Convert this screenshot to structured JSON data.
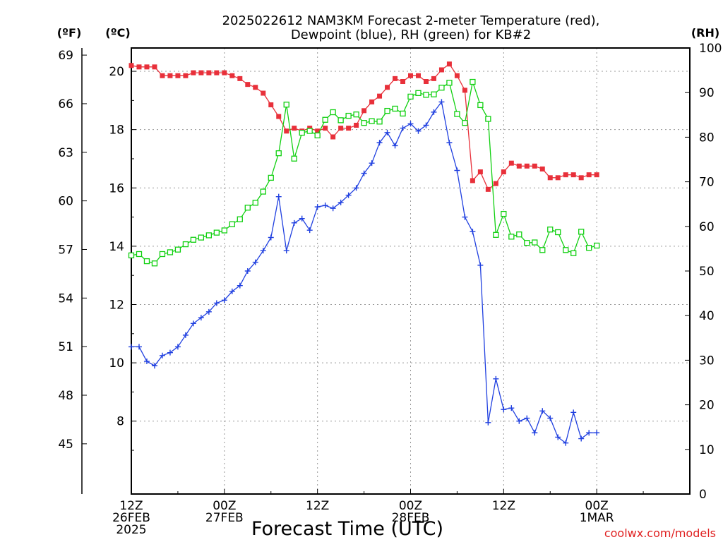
{
  "chart_data": {
    "type": "line",
    "title_lines": [
      "2025022612 NAM3KM Forecast 2-meter Temperature (red),",
      "Dewpoint (blue), RH (green) for KB#2"
    ],
    "xlabel": "Forecast Time (UTC)",
    "credit": "coolwx.com/models",
    "unit_labels": {
      "fahrenheit": "(ºF)",
      "celsius": "(ºC)",
      "rh": "(RH)"
    },
    "x_range_hours": [
      0,
      36
    ],
    "x_ticks": [
      {
        "hour": 0,
        "lines": [
          "12Z",
          "26FEB",
          "2025"
        ]
      },
      {
        "hour": 6,
        "lines": [
          "00Z",
          "27FEB"
        ]
      },
      {
        "hour": 12,
        "lines": [
          "12Z"
        ]
      },
      {
        "hour": 18,
        "lines": [
          "00Z",
          "28FEB"
        ]
      },
      {
        "hour": 24,
        "lines": [
          "12Z"
        ]
      },
      {
        "hour": 30,
        "lines": [
          "00Z",
          "1MAR"
        ]
      }
    ],
    "celsius_axis": {
      "range": [
        5.5,
        20.8
      ],
      "ticks": [
        8,
        10,
        12,
        14,
        16,
        18,
        20
      ]
    },
    "fahrenheit_axis": {
      "ticks": [
        45,
        48,
        51,
        54,
        57,
        60,
        63,
        66,
        69
      ]
    },
    "rh_axis": {
      "range": [
        0,
        100
      ],
      "ticks": [
        0,
        10,
        20,
        30,
        40,
        50,
        60,
        70,
        80,
        90,
        100
      ]
    },
    "grid": true,
    "colors": {
      "temperature": "#e8303a",
      "dewpoint": "#2040e0",
      "rh": "#10d010"
    },
    "series": [
      {
        "name": "Temperature",
        "unit": "celsius",
        "marker": "filled-square",
        "x": [
          0,
          0.5,
          1,
          1.5,
          2,
          2.5,
          3,
          3.5,
          4,
          4.5,
          5,
          5.5,
          6,
          6.5,
          7,
          7.5,
          8,
          8.5,
          9,
          9.5,
          10,
          10.5,
          11,
          11.5,
          12,
          12.5,
          13,
          13.5,
          14,
          14.5,
          15,
          15.5,
          16,
          16.5,
          17,
          17.5,
          18,
          18.5,
          19,
          19.5,
          20,
          20.5,
          21,
          21.5,
          22,
          22.5,
          23,
          23.5,
          24,
          24.5,
          25,
          25.5,
          26,
          26.5,
          27,
          27.5,
          28,
          28.5,
          29,
          29.5,
          30
        ],
        "values": [
          20.2,
          20.15,
          20.15,
          20.15,
          19.85,
          19.85,
          19.85,
          19.85,
          19.95,
          19.95,
          19.95,
          19.95,
          19.95,
          19.85,
          19.75,
          19.55,
          19.45,
          19.25,
          18.85,
          18.45,
          17.95,
          18.05,
          17.95,
          18.05,
          17.95,
          18.05,
          17.75,
          18.05,
          18.05,
          18.15,
          18.65,
          18.95,
          19.15,
          19.45,
          19.75,
          19.65,
          19.85,
          19.85,
          19.65,
          19.75,
          20.05,
          20.25,
          19.85,
          19.35,
          16.25,
          16.55,
          15.95,
          16.15,
          16.55,
          16.85,
          16.75,
          16.75,
          16.75,
          16.65,
          16.35,
          16.35,
          16.45,
          16.45,
          16.35,
          16.45,
          16.45
        ]
      },
      {
        "name": "Dewpoint",
        "unit": "celsius",
        "marker": "plus",
        "x": [
          0,
          0.5,
          1,
          1.5,
          2,
          2.5,
          3,
          3.5,
          4,
          4.5,
          5,
          5.5,
          6,
          6.5,
          7,
          7.5,
          8,
          8.5,
          9,
          9.5,
          10,
          10.5,
          11,
          11.5,
          12,
          12.5,
          13,
          13.5,
          14,
          14.5,
          15,
          15.5,
          16,
          16.5,
          17,
          17.5,
          18,
          18.5,
          19,
          19.5,
          20,
          20.5,
          21,
          21.5,
          22,
          22.5,
          23,
          23.5,
          24,
          24.5,
          25,
          25.5,
          26,
          26.5,
          27,
          27.5,
          28,
          28.5,
          29,
          29.5,
          30
        ],
        "values": [
          10.55,
          10.55,
          10.05,
          9.9,
          10.25,
          10.35,
          10.55,
          10.95,
          11.35,
          11.55,
          11.75,
          12.05,
          12.15,
          12.45,
          12.65,
          13.15,
          13.45,
          13.85,
          14.3,
          15.7,
          13.85,
          14.8,
          14.95,
          14.55,
          15.35,
          15.4,
          15.3,
          15.5,
          15.75,
          16.0,
          16.5,
          16.85,
          17.55,
          17.9,
          17.45,
          18.05,
          18.2,
          17.95,
          18.15,
          18.6,
          18.95,
          17.55,
          16.6,
          15.0,
          14.5,
          13.35,
          7.95,
          9.45,
          8.4,
          8.45,
          8.0,
          8.1,
          7.6,
          8.35,
          8.1,
          7.45,
          7.25,
          8.3,
          7.4,
          7.6,
          7.6
        ]
      },
      {
        "name": "RH",
        "unit": "rh",
        "marker": "open-square",
        "x": [
          0,
          0.5,
          1,
          1.5,
          2,
          2.5,
          3,
          3.5,
          4,
          4.5,
          5,
          5.5,
          6,
          6.5,
          7,
          7.5,
          8,
          8.5,
          9,
          9.5,
          10,
          10.5,
          11,
          11.5,
          12,
          12.5,
          13,
          13.5,
          14,
          14.5,
          15,
          15.5,
          16,
          16.5,
          17,
          17.5,
          18,
          18.5,
          19,
          19.5,
          20,
          20.5,
          21,
          21.5,
          22,
          22.5,
          23,
          23.5,
          24,
          24.5,
          25,
          25.5,
          26,
          26.5,
          27,
          27.5,
          28,
          28.5,
          29,
          29.5,
          30
        ],
        "values": [
          53.5,
          53.8,
          52.2,
          51.7,
          53.8,
          54.2,
          54.8,
          56.0,
          57.0,
          57.5,
          58.0,
          58.6,
          59.1,
          60.5,
          61.6,
          64.2,
          65.3,
          67.8,
          70.9,
          76.4,
          87.3,
          75.2,
          81.0,
          81.4,
          80.4,
          83.9,
          85.6,
          83.8,
          84.8,
          85.1,
          83.2,
          83.6,
          83.5,
          85.9,
          86.4,
          85.3,
          89.1,
          89.9,
          89.5,
          89.6,
          91.1,
          92.2,
          85.2,
          83.2,
          92.4,
          87.2,
          84.1,
          58.1,
          62.8,
          57.7,
          58.2,
          56.3,
          56.4,
          54.7,
          59.3,
          58.7,
          54.7,
          54.0,
          58.8,
          55.2,
          55.7
        ]
      }
    ]
  }
}
